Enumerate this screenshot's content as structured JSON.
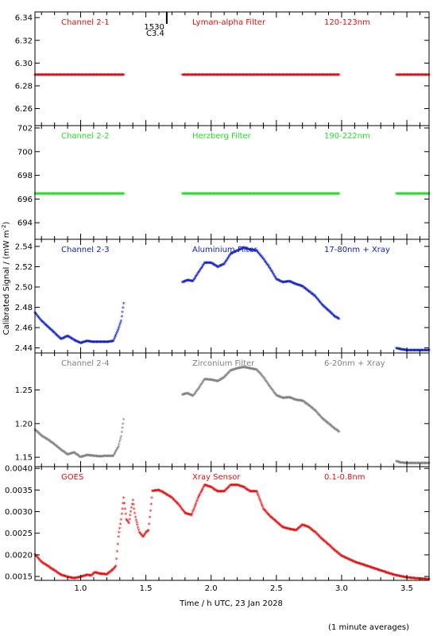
{
  "figure": {
    "ylabel": "Calibrated Signal / (mW m",
    "ylabel_sup": "-2",
    "ylabel_end": ")",
    "xlabel": "Time / h UTC, 23 Jan 2028",
    "footnote": "(1 minute averages)",
    "event_marker": {
      "time_label": "1530",
      "class_label": "C3.4",
      "x": 1.66
    }
  },
  "colors": {
    "red": "#e01010",
    "green": "#20e020",
    "blue": "#1020c0",
    "grey": "#7f7f7f",
    "axis": "#000000"
  },
  "x_axis": {
    "xlim": [
      0.65,
      3.67
    ],
    "ticks": [
      1.0,
      1.5,
      2.0,
      2.5,
      3.0,
      3.5
    ],
    "tick_labels": [
      "1.0",
      "1.5",
      "2.0",
      "2.5",
      "3.0",
      "3.5"
    ]
  },
  "chart_data": [
    {
      "type": "scatter",
      "channel": "Channel 2-1",
      "filter": "Lyman-alpha Filter",
      "band": "120-123nm",
      "color": "#e01010",
      "ylim": [
        6.245,
        6.345
      ],
      "yticks": [
        6.26,
        6.28,
        6.3,
        6.32,
        6.34
      ],
      "ytick_labels": [
        "6.26",
        "6.28",
        "6.30",
        "6.32",
        "6.34"
      ],
      "series": [
        {
          "x": [
            0.65,
            1.33
          ],
          "y": [
            6.289,
            6.289
          ]
        },
        {
          "x": [
            1.78,
            2.98
          ],
          "y": [
            6.289,
            6.289
          ]
        },
        {
          "x": [
            3.42,
            3.67
          ],
          "y": [
            6.289,
            6.289
          ]
        }
      ]
    },
    {
      "type": "scatter",
      "channel": "Channel 2-2",
      "filter": "Herzberg Filter",
      "band": "190-222nm",
      "color": "#20e020",
      "ylim": [
        692.6,
        702.2
      ],
      "yticks": [
        694,
        696,
        698,
        700,
        702
      ],
      "ytick_labels": [
        "694",
        "696",
        "698",
        "700",
        "702"
      ],
      "series": [
        {
          "x": [
            0.65,
            1.33
          ],
          "y": [
            696.4,
            696.4
          ]
        },
        {
          "x": [
            1.78,
            2.98
          ],
          "y": [
            696.4,
            696.4
          ]
        },
        {
          "x": [
            3.42,
            3.67
          ],
          "y": [
            696.4,
            696.4
          ]
        }
      ]
    },
    {
      "type": "scatter",
      "channel": "Channel 2-3",
      "filter": "Aluminium Filter",
      "band": "17-80nm + Xray",
      "color": "#1020c0",
      "ylim": [
        2.435,
        2.547
      ],
      "yticks": [
        2.44,
        2.46,
        2.48,
        2.5,
        2.52,
        2.54
      ],
      "ytick_labels": [
        "2.44",
        "2.46",
        "2.48",
        "2.50",
        "2.52",
        "2.54"
      ],
      "series": [
        {
          "x": [
            0.65,
            0.7,
            0.75,
            0.8,
            0.85,
            0.9,
            0.95,
            1.0,
            1.05,
            1.1,
            1.15,
            1.2,
            1.25,
            1.27,
            1.29,
            1.31,
            1.33
          ],
          "y": [
            2.474,
            2.466,
            2.46,
            2.454,
            2.448,
            2.451,
            2.447,
            2.444,
            2.446,
            2.445,
            2.445,
            2.445,
            2.446,
            2.452,
            2.458,
            2.466,
            2.483
          ]
        },
        {
          "x": [
            1.78,
            1.82,
            1.86,
            1.9,
            1.95,
            2.0,
            2.05,
            2.1,
            2.15,
            2.2,
            2.25,
            2.3,
            2.35,
            2.4,
            2.45,
            2.5,
            2.55,
            2.6,
            2.65,
            2.7,
            2.75,
            2.8,
            2.85,
            2.9,
            2.95,
            2.98
          ],
          "y": [
            2.504,
            2.506,
            2.505,
            2.513,
            2.523,
            2.523,
            2.519,
            2.522,
            2.532,
            2.535,
            2.538,
            2.536,
            2.535,
            2.527,
            2.518,
            2.507,
            2.504,
            2.505,
            2.502,
            2.5,
            2.495,
            2.49,
            2.482,
            2.476,
            2.47,
            2.468
          ]
        },
        {
          "x": [
            3.42,
            3.45,
            3.5,
            3.55,
            3.6,
            3.67
          ],
          "y": [
            2.439,
            2.438,
            2.437,
            2.437,
            2.437,
            2.437
          ]
        }
      ]
    },
    {
      "type": "scatter",
      "channel": "Channel 2-4",
      "filter": "Zirconium Filter",
      "band": "6-20nm + Xray",
      "color": "#7f7f7f",
      "ylim": [
        1.136,
        1.305
      ],
      "yticks": [
        1.15,
        1.2,
        1.25
      ],
      "ytick_labels": [
        "1.15",
        "1.20",
        "1.25"
      ],
      "series": [
        {
          "x": [
            0.65,
            0.7,
            0.75,
            0.8,
            0.85,
            0.9,
            0.95,
            1.0,
            1.05,
            1.1,
            1.15,
            1.2,
            1.25,
            1.27,
            1.29,
            1.31,
            1.33
          ],
          "y": [
            1.19,
            1.181,
            1.175,
            1.168,
            1.16,
            1.153,
            1.156,
            1.149,
            1.152,
            1.151,
            1.15,
            1.151,
            1.151,
            1.158,
            1.165,
            1.18,
            1.205
          ]
        },
        {
          "x": [
            1.78,
            1.82,
            1.86,
            1.9,
            1.95,
            2.0,
            2.05,
            2.1,
            2.15,
            2.2,
            2.25,
            2.3,
            2.35,
            2.4,
            2.45,
            2.5,
            2.55,
            2.6,
            2.65,
            2.7,
            2.75,
            2.8,
            2.85,
            2.9,
            2.95,
            2.98
          ],
          "y": [
            1.242,
            1.244,
            1.24,
            1.25,
            1.265,
            1.264,
            1.262,
            1.268,
            1.278,
            1.281,
            1.283,
            1.281,
            1.279,
            1.268,
            1.254,
            1.241,
            1.237,
            1.238,
            1.234,
            1.233,
            1.226,
            1.218,
            1.207,
            1.199,
            1.191,
            1.187
          ]
        },
        {
          "x": [
            3.42,
            3.45,
            3.5,
            3.55,
            3.6,
            3.67
          ],
          "y": [
            1.143,
            1.141,
            1.14,
            1.14,
            1.14,
            1.14
          ]
        }
      ]
    },
    {
      "type": "scatter",
      "channel": "GOES",
      "filter": "Xray Sensor",
      "band": "0.1-0.8nm",
      "color": "#e01010",
      "ylim": [
        0.00141,
        0.00404
      ],
      "yticks": [
        0.0015,
        0.002,
        0.0025,
        0.003,
        0.0035,
        0.004
      ],
      "ytick_labels": [
        "0.0015",
        "0.0020",
        "0.0025",
        "0.0030",
        "0.0035",
        "0.0040"
      ],
      "series": [
        {
          "x": [
            0.65,
            0.7,
            0.75,
            0.8,
            0.85,
            0.9,
            0.95,
            1.0,
            1.05,
            1.08,
            1.11,
            1.14,
            1.17,
            1.2,
            1.23,
            1.25,
            1.27,
            1.29,
            1.31,
            1.33,
            1.35,
            1.37,
            1.4,
            1.42,
            1.45,
            1.48,
            1.5,
            1.52,
            1.55,
            1.6,
            1.65,
            1.7,
            1.75,
            1.8,
            1.85,
            1.9,
            1.95,
            2.0,
            2.05,
            2.1,
            2.15,
            2.2,
            2.25,
            2.3,
            2.35,
            2.4,
            2.45,
            2.5,
            2.55,
            2.6,
            2.65,
            2.7,
            2.75,
            2.8,
            2.85,
            2.9,
            2.95,
            3.0,
            3.1,
            3.2,
            3.3,
            3.4,
            3.5,
            3.6,
            3.67
          ],
          "y": [
            0.00199,
            0.00182,
            0.00172,
            0.00162,
            0.00152,
            0.00147,
            0.00144,
            0.00147,
            0.00152,
            0.0015,
            0.00158,
            0.00155,
            0.00154,
            0.00153,
            0.0016,
            0.00165,
            0.00172,
            0.0024,
            0.0028,
            0.0033,
            0.0028,
            0.00272,
            0.00325,
            0.00285,
            0.0025,
            0.0024,
            0.0025,
            0.00255,
            0.00346,
            0.00348,
            0.0034,
            0.0033,
            0.00315,
            0.00295,
            0.0029,
            0.0033,
            0.0036,
            0.00355,
            0.00345,
            0.00345,
            0.0036,
            0.0036,
            0.00355,
            0.00345,
            0.00345,
            0.00305,
            0.00288,
            0.00275,
            0.00262,
            0.00258,
            0.00255,
            0.00268,
            0.00262,
            0.0025,
            0.00235,
            0.00222,
            0.00208,
            0.00196,
            0.00182,
            0.00172,
            0.00162,
            0.00152,
            0.00146,
            0.00143,
            0.00142
          ]
        }
      ]
    }
  ]
}
